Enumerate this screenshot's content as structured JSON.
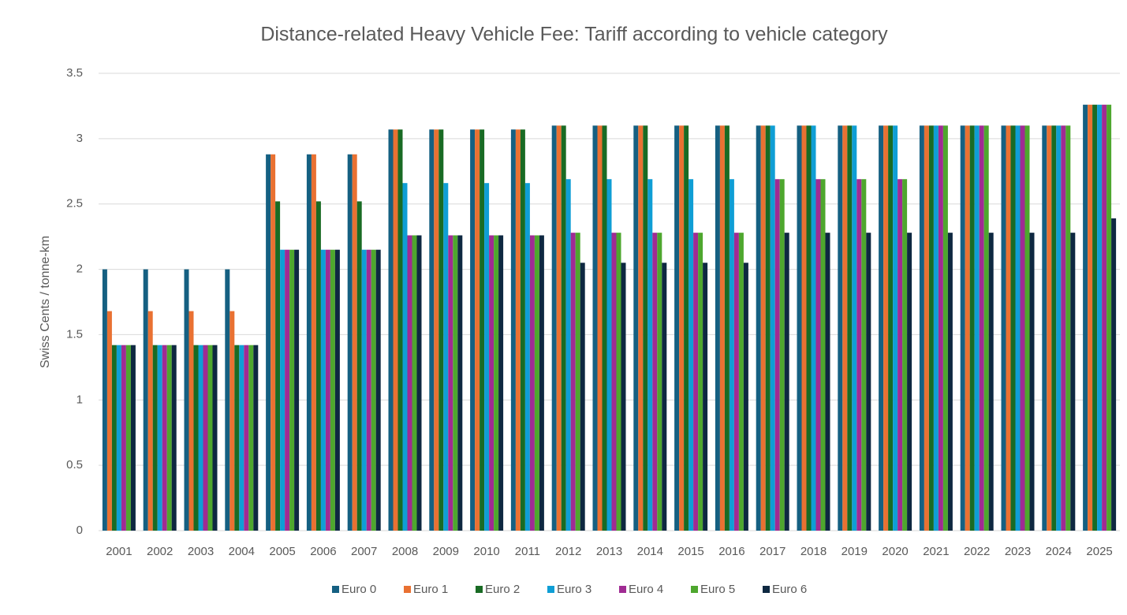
{
  "chart_data": {
    "type": "bar",
    "title": "Distance-related Heavy Vehicle Fee: Tariff according to vehicle category",
    "y_label": "Swiss Cents / tonne-km",
    "categories": [
      "2001",
      "2002",
      "2003",
      "2004",
      "2005",
      "2006",
      "2007",
      "2008",
      "2009",
      "2010",
      "2011",
      "2012",
      "2013",
      "2014",
      "2015",
      "2016",
      "2017",
      "2018",
      "2019",
      "2020",
      "2021",
      "2022",
      "2023",
      "2024",
      "2025"
    ],
    "series": [
      {
        "name": "Euro 0",
        "color": "#156082",
        "values": [
          2,
          2,
          2,
          2,
          2.88,
          2.88,
          2.88,
          3.07,
          3.07,
          3.07,
          3.07,
          3.1,
          3.1,
          3.1,
          3.1,
          3.1,
          3.1,
          3.1,
          3.1,
          3.1,
          3.1,
          3.1,
          3.1,
          3.1,
          3.26
        ]
      },
      {
        "name": "Euro 1",
        "color": "#e97132",
        "values": [
          1.68,
          1.68,
          1.68,
          1.68,
          2.88,
          2.88,
          2.88,
          3.07,
          3.07,
          3.07,
          3.07,
          3.1,
          3.1,
          3.1,
          3.1,
          3.1,
          3.1,
          3.1,
          3.1,
          3.1,
          3.1,
          3.1,
          3.1,
          3.1,
          3.26
        ]
      },
      {
        "name": "Euro 2",
        "color": "#196b24",
        "values": [
          1.42,
          1.42,
          1.42,
          1.42,
          2.52,
          2.52,
          2.52,
          3.07,
          3.07,
          3.07,
          3.07,
          3.1,
          3.1,
          3.1,
          3.1,
          3.1,
          3.1,
          3.1,
          3.1,
          3.1,
          3.1,
          3.1,
          3.1,
          3.1,
          3.26
        ]
      },
      {
        "name": "Euro 3",
        "color": "#0f9ed5",
        "values": [
          1.42,
          1.42,
          1.42,
          1.42,
          2.15,
          2.15,
          2.15,
          2.66,
          2.66,
          2.66,
          2.66,
          2.69,
          2.69,
          2.69,
          2.69,
          2.69,
          3.1,
          3.1,
          3.1,
          3.1,
          3.1,
          3.1,
          3.1,
          3.1,
          3.26
        ]
      },
      {
        "name": "Euro 4",
        "color": "#a02b93",
        "values": [
          1.42,
          1.42,
          1.42,
          1.42,
          2.15,
          2.15,
          2.15,
          2.26,
          2.26,
          2.26,
          2.26,
          2.28,
          2.28,
          2.28,
          2.28,
          2.28,
          2.69,
          2.69,
          2.69,
          2.69,
          3.1,
          3.1,
          3.1,
          3.1,
          3.26
        ]
      },
      {
        "name": "Euro 5",
        "color": "#4ea72e",
        "values": [
          1.42,
          1.42,
          1.42,
          1.42,
          2.15,
          2.15,
          2.15,
          2.26,
          2.26,
          2.26,
          2.26,
          2.28,
          2.28,
          2.28,
          2.28,
          2.28,
          2.69,
          2.69,
          2.69,
          2.69,
          3.1,
          3.1,
          3.1,
          3.1,
          3.26
        ]
      },
      {
        "name": "Euro 6",
        "color": "#0e2841",
        "values": [
          1.42,
          1.42,
          1.42,
          1.42,
          2.15,
          2.15,
          2.15,
          2.26,
          2.26,
          2.26,
          2.26,
          2.05,
          2.05,
          2.05,
          2.05,
          2.05,
          2.28,
          2.28,
          2.28,
          2.28,
          2.28,
          2.28,
          2.28,
          2.28,
          2.39
        ]
      }
    ],
    "ylim": [
      0,
      3.5
    ],
    "yticks": [
      0,
      0.5,
      1,
      1.5,
      2,
      2.5,
      3,
      3.5
    ],
    "grid": true,
    "legend": "bottom"
  }
}
